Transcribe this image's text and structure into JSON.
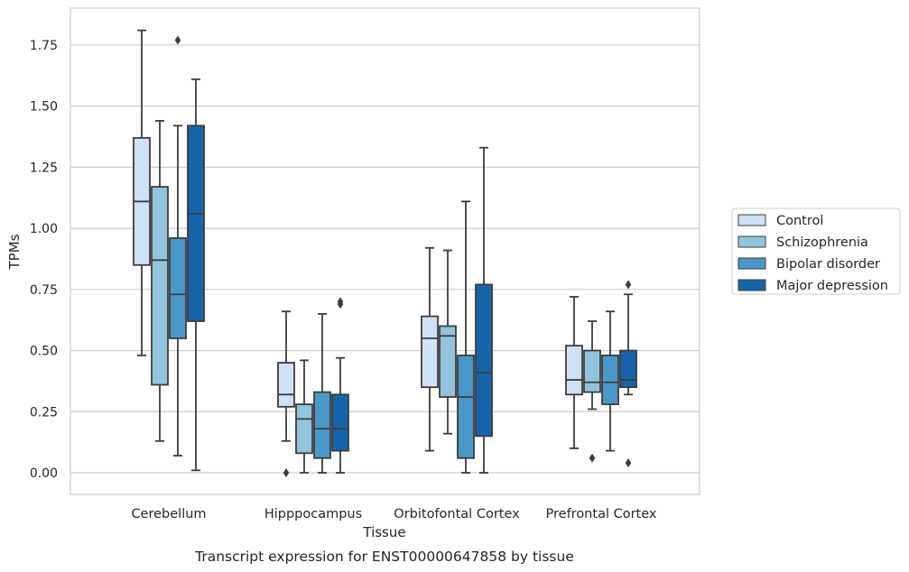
{
  "chart_data": {
    "type": "boxplot",
    "title": "Transcript expression for ENST00000647858 by tissue",
    "xlabel": "Tissue",
    "ylabel": "TPMs",
    "ylim": [
      -0.09,
      1.9
    ],
    "yticks": [
      0.0,
      0.25,
      0.5,
      0.75,
      1.0,
      1.25,
      1.5,
      1.75
    ],
    "ytick_labels": [
      "0.00",
      "0.25",
      "0.50",
      "0.75",
      "1.00",
      "1.25",
      "1.50",
      "1.75"
    ],
    "grid": "horizontal",
    "legend_position": "right",
    "categories": [
      "Cerebellum",
      "Hipppocampus",
      "Orbitofontal Cortex",
      "Prefrontal Cortex"
    ],
    "series": [
      {
        "name": "Control",
        "color": "#cfe1f2",
        "boxes": [
          {
            "whislo": 0.48,
            "q1": 0.85,
            "med": 1.11,
            "q3": 1.37,
            "whishi": 1.81,
            "fliers": []
          },
          {
            "whislo": 0.13,
            "q1": 0.27,
            "med": 0.32,
            "q3": 0.45,
            "whishi": 0.66,
            "fliers": [
              0.0
            ]
          },
          {
            "whislo": 0.09,
            "q1": 0.35,
            "med": 0.55,
            "q3": 0.64,
            "whishi": 0.92,
            "fliers": []
          },
          {
            "whislo": 0.1,
            "q1": 0.32,
            "med": 0.38,
            "q3": 0.52,
            "whishi": 0.72,
            "fliers": []
          }
        ]
      },
      {
        "name": "Schizophrenia",
        "color": "#93c4de",
        "boxes": [
          {
            "whislo": 0.13,
            "q1": 0.36,
            "med": 0.87,
            "q3": 1.17,
            "whishi": 1.44,
            "fliers": []
          },
          {
            "whislo": 0.0,
            "q1": 0.08,
            "med": 0.22,
            "q3": 0.28,
            "whishi": 0.46,
            "fliers": []
          },
          {
            "whislo": 0.16,
            "q1": 0.31,
            "med": 0.56,
            "q3": 0.6,
            "whishi": 0.91,
            "fliers": []
          },
          {
            "whislo": 0.26,
            "q1": 0.33,
            "med": 0.37,
            "q3": 0.5,
            "whishi": 0.62,
            "fliers": [
              0.06
            ]
          }
        ]
      },
      {
        "name": "Bipolar disorder",
        "color": "#4a98c9",
        "boxes": [
          {
            "whislo": 0.07,
            "q1": 0.55,
            "med": 0.73,
            "q3": 0.96,
            "whishi": 1.42,
            "fliers": [
              1.77
            ]
          },
          {
            "whislo": 0.0,
            "q1": 0.06,
            "med": 0.18,
            "q3": 0.33,
            "whishi": 0.65,
            "fliers": []
          },
          {
            "whislo": 0.0,
            "q1": 0.06,
            "med": 0.31,
            "q3": 0.48,
            "whishi": 1.11,
            "fliers": []
          },
          {
            "whislo": 0.09,
            "q1": 0.28,
            "med": 0.37,
            "q3": 0.48,
            "whishi": 0.66,
            "fliers": []
          }
        ]
      },
      {
        "name": "Major depression",
        "color": "#1764ab",
        "boxes": [
          {
            "whislo": 0.01,
            "q1": 0.62,
            "med": 1.06,
            "q3": 1.42,
            "whishi": 1.61,
            "fliers": []
          },
          {
            "whislo": 0.0,
            "q1": 0.09,
            "med": 0.18,
            "q3": 0.32,
            "whishi": 0.47,
            "fliers": [
              0.69,
              0.7
            ]
          },
          {
            "whislo": 0.0,
            "q1": 0.15,
            "med": 0.41,
            "q3": 0.77,
            "whishi": 1.33,
            "fliers": []
          },
          {
            "whislo": 0.32,
            "q1": 0.35,
            "med": 0.38,
            "q3": 0.5,
            "whishi": 0.73,
            "fliers": [
              0.77,
              0.04
            ]
          }
        ]
      }
    ]
  }
}
